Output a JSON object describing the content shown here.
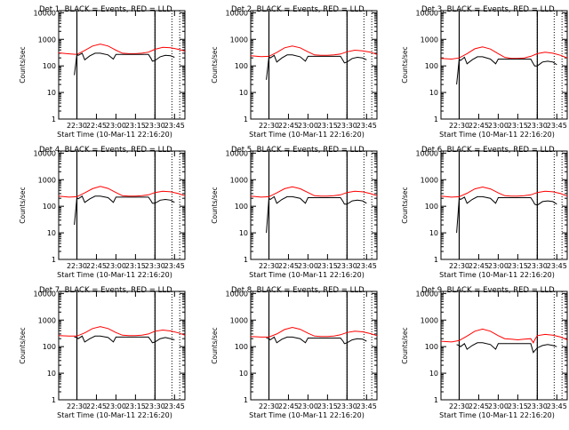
{
  "chart_data": {
    "type": "line",
    "x_unit": "UT",
    "x_ticks": [
      "22:30",
      "22:45",
      "23:00",
      "23:15",
      "23:30",
      "23:45"
    ],
    "y_ticks": [
      "1",
      "10",
      "100",
      "1000",
      "10000"
    ],
    "y_scale": "log",
    "ylim": [
      1,
      12000
    ],
    "ylabel": "Counts/sec",
    "xlabel": "Start Time (10-Mar-11 22:16:20)",
    "legend_text": "BLACK = Events, RED = LLD",
    "series_colors": {
      "events": "#000000",
      "lld": "#ff0000"
    },
    "markers": {
      "solid_lines": [
        "22:30",
        "23:30"
      ],
      "dotted_lines": [
        "23:30",
        "23:43",
        "23:49"
      ]
    },
    "panels": [
      {
        "title": "Det 1",
        "lld": {
          "x": [
            "22:16",
            "22:24",
            "22:30",
            "22:36",
            "22:42",
            "22:48",
            "22:54",
            "23:00",
            "23:05",
            "23:10",
            "23:15",
            "23:20",
            "23:25",
            "23:30",
            "23:36",
            "23:42",
            "23:48",
            "23:53"
          ],
          "y": [
            310,
            285,
            270,
            380,
            560,
            660,
            560,
            390,
            300,
            290,
            290,
            300,
            330,
            420,
            500,
            480,
            420,
            360
          ]
        },
        "events": {
          "x": [
            "22:28",
            "22:30",
            "22:31",
            "22:34",
            "22:36",
            "22:40",
            "22:44",
            "22:48",
            "22:54",
            "22:58",
            "23:00",
            "23:05",
            "23:10",
            "23:15",
            "23:20",
            "23:25",
            "23:27",
            "23:28",
            "23:30",
            "23:34",
            "23:38",
            "23:42",
            "23:45"
          ],
          "y": [
            45,
            270,
            250,
            300,
            170,
            240,
            300,
            300,
            260,
            180,
            270,
            270,
            270,
            270,
            270,
            270,
            190,
            150,
            160,
            220,
            250,
            240,
            210
          ]
        }
      },
      {
        "title": "Det 2",
        "lld": {
          "x": [
            "22:16",
            "22:24",
            "22:30",
            "22:36",
            "22:42",
            "22:48",
            "22:54",
            "23:00",
            "23:05",
            "23:10",
            "23:15",
            "23:20",
            "23:25",
            "23:30",
            "23:36",
            "23:42",
            "23:48",
            "23:53"
          ],
          "y": [
            240,
            225,
            230,
            320,
            480,
            560,
            480,
            340,
            260,
            250,
            250,
            260,
            280,
            340,
            390,
            370,
            330,
            270
          ]
        },
        "events": {
          "x": [
            "22:28",
            "22:30",
            "22:31",
            "22:34",
            "22:36",
            "22:40",
            "22:44",
            "22:48",
            "22:54",
            "22:58",
            "23:00",
            "23:05",
            "23:10",
            "23:15",
            "23:20",
            "23:25",
            "23:27",
            "23:28",
            "23:30",
            "23:34",
            "23:38",
            "23:42",
            "23:45"
          ],
          "y": [
            30,
            220,
            200,
            250,
            140,
            200,
            260,
            260,
            220,
            150,
            230,
            230,
            230,
            230,
            230,
            230,
            160,
            130,
            140,
            190,
            210,
            200,
            170
          ]
        }
      },
      {
        "title": "Det 3",
        "lld": {
          "x": [
            "22:16",
            "22:24",
            "22:30",
            "22:36",
            "22:42",
            "22:48",
            "22:54",
            "23:00",
            "23:05",
            "23:10",
            "23:15",
            "23:20",
            "23:25",
            "23:30",
            "23:36",
            "23:42",
            "23:48",
            "23:53"
          ],
          "y": [
            190,
            180,
            200,
            290,
            440,
            520,
            430,
            290,
            210,
            190,
            190,
            200,
            230,
            290,
            330,
            300,
            250,
            200
          ]
        },
        "events": {
          "x": [
            "22:28",
            "22:30",
            "22:31",
            "22:34",
            "22:36",
            "22:40",
            "22:44",
            "22:48",
            "22:54",
            "22:58",
            "23:00",
            "23:05",
            "23:10",
            "23:15",
            "23:20",
            "23:25",
            "23:27",
            "23:28",
            "23:30",
            "23:34",
            "23:38",
            "23:42",
            "23:45"
          ],
          "y": [
            20,
            180,
            160,
            210,
            120,
            170,
            220,
            220,
            180,
            120,
            180,
            180,
            180,
            180,
            180,
            180,
            120,
            100,
            100,
            140,
            150,
            140,
            110
          ]
        }
      },
      {
        "title": "Det 4",
        "lld": {
          "x": [
            "22:16",
            "22:24",
            "22:30",
            "22:36",
            "22:42",
            "22:48",
            "22:54",
            "23:00",
            "23:05",
            "23:10",
            "23:15",
            "23:20",
            "23:25",
            "23:30",
            "23:36",
            "23:42",
            "23:48",
            "23:53"
          ],
          "y": [
            240,
            220,
            230,
            320,
            460,
            560,
            470,
            330,
            250,
            240,
            240,
            250,
            270,
            330,
            370,
            350,
            300,
            250
          ]
        },
        "events": {
          "x": [
            "22:28",
            "22:30",
            "22:31",
            "22:34",
            "22:36",
            "22:40",
            "22:44",
            "22:48",
            "22:54",
            "22:58",
            "23:00",
            "23:05",
            "23:10",
            "23:15",
            "23:20",
            "23:25",
            "23:27",
            "23:28",
            "23:30",
            "23:34",
            "23:38",
            "23:42",
            "23:45"
          ],
          "y": [
            20,
            210,
            190,
            240,
            140,
            190,
            240,
            240,
            210,
            140,
            220,
            220,
            220,
            220,
            220,
            220,
            160,
            130,
            130,
            170,
            180,
            170,
            140
          ]
        }
      },
      {
        "title": "Det 5",
        "lld": {
          "x": [
            "22:16",
            "22:24",
            "22:30",
            "22:36",
            "22:42",
            "22:48",
            "22:54",
            "23:00",
            "23:05",
            "23:10",
            "23:15",
            "23:20",
            "23:25",
            "23:30",
            "23:36",
            "23:42",
            "23:48",
            "23:53"
          ],
          "y": [
            240,
            220,
            230,
            320,
            460,
            540,
            460,
            330,
            250,
            240,
            240,
            250,
            270,
            330,
            370,
            350,
            300,
            250
          ]
        },
        "events": {
          "x": [
            "22:28",
            "22:30",
            "22:31",
            "22:34",
            "22:36",
            "22:40",
            "22:44",
            "22:48",
            "22:54",
            "22:58",
            "23:00",
            "23:05",
            "23:10",
            "23:15",
            "23:20",
            "23:25",
            "23:27",
            "23:28",
            "23:30",
            "23:34",
            "23:38",
            "23:42",
            "23:45"
          ],
          "y": [
            10,
            200,
            180,
            230,
            130,
            180,
            230,
            230,
            200,
            130,
            210,
            210,
            210,
            210,
            210,
            210,
            150,
            120,
            120,
            160,
            170,
            160,
            130
          ]
        }
      },
      {
        "title": "Det 6",
        "lld": {
          "x": [
            "22:16",
            "22:24",
            "22:30",
            "22:36",
            "22:42",
            "22:48",
            "22:54",
            "23:00",
            "23:05",
            "23:10",
            "23:15",
            "23:20",
            "23:25",
            "23:30",
            "23:36",
            "23:42",
            "23:48",
            "23:53"
          ],
          "y": [
            240,
            220,
            230,
            310,
            450,
            530,
            450,
            320,
            250,
            240,
            240,
            250,
            270,
            330,
            370,
            350,
            300,
            240
          ]
        },
        "events": {
          "x": [
            "22:28",
            "22:30",
            "22:31",
            "22:34",
            "22:36",
            "22:40",
            "22:44",
            "22:48",
            "22:54",
            "22:58",
            "23:00",
            "23:05",
            "23:10",
            "23:15",
            "23:20",
            "23:25",
            "23:27",
            "23:28",
            "23:30",
            "23:34",
            "23:38",
            "23:42",
            "23:45"
          ],
          "y": [
            10,
            200,
            180,
            220,
            130,
            180,
            230,
            230,
            200,
            130,
            210,
            210,
            210,
            210,
            210,
            210,
            150,
            120,
            110,
            150,
            160,
            150,
            120
          ]
        }
      },
      {
        "title": "Det 7",
        "lld": {
          "x": [
            "22:16",
            "22:24",
            "22:30",
            "22:36",
            "22:42",
            "22:48",
            "22:54",
            "23:00",
            "23:05",
            "23:10",
            "23:15",
            "23:20",
            "23:25",
            "23:30",
            "23:36",
            "23:42",
            "23:48",
            "23:53"
          ],
          "y": [
            260,
            250,
            250,
            330,
            480,
            570,
            480,
            340,
            270,
            260,
            260,
            270,
            300,
            380,
            420,
            390,
            330,
            270
          ]
        },
        "events": {
          "x": [
            "22:28",
            "22:30",
            "22:31",
            "22:34",
            "22:36",
            "22:40",
            "22:44",
            "22:48",
            "22:54",
            "22:58",
            "23:00",
            "23:05",
            "23:10",
            "23:15",
            "23:20",
            "23:25",
            "23:27",
            "23:28",
            "23:30",
            "23:34",
            "23:38",
            "23:42",
            "23:45"
          ],
          "y": [
            230,
            220,
            200,
            250,
            150,
            200,
            250,
            250,
            220,
            150,
            230,
            230,
            230,
            230,
            230,
            230,
            170,
            140,
            150,
            200,
            220,
            200,
            180
          ]
        }
      },
      {
        "title": "Det 8",
        "lld": {
          "x": [
            "22:16",
            "22:24",
            "22:30",
            "22:36",
            "22:42",
            "22:48",
            "22:54",
            "23:00",
            "23:05",
            "23:10",
            "23:15",
            "23:20",
            "23:25",
            "23:30",
            "23:36",
            "23:42",
            "23:48",
            "23:53"
          ],
          "y": [
            240,
            230,
            230,
            300,
            440,
            530,
            450,
            320,
            250,
            240,
            240,
            250,
            280,
            340,
            380,
            360,
            310,
            260
          ]
        },
        "events": {
          "x": [
            "22:28",
            "22:30",
            "22:31",
            "22:34",
            "22:36",
            "22:40",
            "22:44",
            "22:48",
            "22:54",
            "22:58",
            "23:00",
            "23:05",
            "23:10",
            "23:15",
            "23:20",
            "23:25",
            "23:27",
            "23:28",
            "23:30",
            "23:34",
            "23:38",
            "23:42",
            "23:45"
          ],
          "y": [
            210,
            200,
            180,
            230,
            140,
            190,
            230,
            230,
            200,
            140,
            210,
            210,
            210,
            210,
            210,
            210,
            160,
            130,
            140,
            180,
            200,
            190,
            160
          ]
        }
      },
      {
        "title": "Det 9",
        "lld": {
          "x": [
            "22:16",
            "22:24",
            "22:30",
            "22:36",
            "22:42",
            "22:48",
            "22:54",
            "23:00",
            "23:05",
            "23:10",
            "23:15",
            "23:20",
            "23:25",
            "23:27",
            "23:28",
            "23:30",
            "23:36",
            "23:42",
            "23:48",
            "23:53"
          ],
          "y": [
            160,
            150,
            170,
            250,
            380,
            460,
            380,
            260,
            200,
            190,
            180,
            190,
            200,
            140,
            180,
            260,
            290,
            270,
            230,
            180
          ]
        },
        "events": {
          "x": [
            "22:28",
            "22:30",
            "22:31",
            "22:34",
            "22:36",
            "22:40",
            "22:44",
            "22:48",
            "22:54",
            "22:58",
            "23:00",
            "23:05",
            "23:10",
            "23:15",
            "23:20",
            "23:25",
            "23:27",
            "23:28",
            "23:30",
            "23:34",
            "23:38",
            "23:42",
            "23:45"
          ],
          "y": [
            120,
            110,
            100,
            130,
            80,
            110,
            140,
            140,
            120,
            80,
            130,
            130,
            130,
            130,
            130,
            130,
            60,
            70,
            90,
            110,
            120,
            110,
            100
          ]
        }
      }
    ]
  }
}
